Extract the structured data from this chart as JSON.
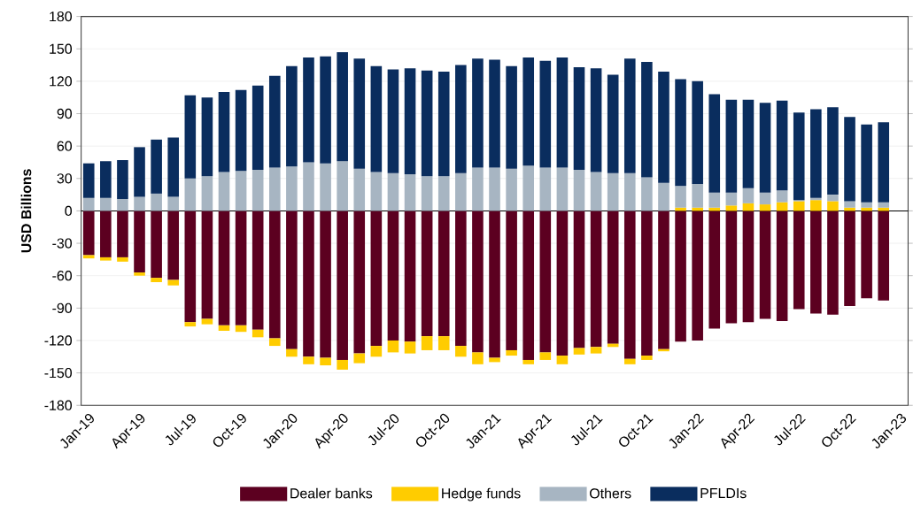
{
  "chart_data": {
    "type": "bar",
    "stacked": true,
    "ylabel": "USD Billions",
    "categories": [
      "Jan-19",
      null,
      null,
      "Apr-19",
      null,
      null,
      "Jul-19",
      null,
      null,
      "Oct-19",
      null,
      null,
      "Jan-20",
      null,
      null,
      "Apr-20",
      null,
      null,
      "Jul-20",
      null,
      null,
      "Oct-20",
      null,
      null,
      "Jan-21",
      null,
      null,
      "Apr-21",
      null,
      null,
      "Jul-21",
      null,
      null,
      "Oct-21",
      null,
      null,
      "Jan-22",
      null,
      null,
      "Apr-22",
      null,
      null,
      "Jul-22",
      null,
      null,
      "Oct-22",
      null,
      null,
      "Jan-23"
    ],
    "series": [
      {
        "name": "Dealer banks",
        "color": "#5c0020",
        "values": [
          -41,
          -43,
          -43,
          -57,
          -62,
          -64,
          -103,
          -100,
          -106,
          -106,
          -110,
          -118,
          -128,
          -135,
          -136,
          -138,
          -132,
          -125,
          -120,
          -121,
          -116,
          -116,
          -125,
          -131,
          -136,
          -129,
          -138,
          -131,
          -134,
          -127,
          -126,
          -123,
          -137,
          -134,
          -128,
          -121,
          -120,
          -109,
          -104,
          -103,
          -100,
          -102,
          -91,
          -95,
          -96,
          -88,
          -81,
          -83,
          null
        ]
      },
      {
        "name": "Hedge funds",
        "color": "#ffcc00",
        "values": [
          -3,
          -3,
          -4,
          -3,
          -4,
          -5,
          -4,
          -5,
          -5,
          -6,
          -7,
          -7,
          -7,
          -7,
          -7,
          -9,
          -9,
          -10,
          -11,
          -11,
          -13,
          -13,
          -10,
          -11,
          -4,
          -5,
          -4,
          -7,
          -8,
          -6,
          -6,
          -3,
          -5,
          -4,
          -2,
          3,
          3,
          3,
          5,
          7,
          6,
          8,
          9,
          10,
          9,
          3,
          3,
          3,
          null
        ]
      },
      {
        "name": "Others",
        "color": "#a7b5c2",
        "values": [
          12,
          12,
          11,
          13,
          16,
          13,
          30,
          32,
          36,
          37,
          38,
          40,
          41,
          45,
          44,
          46,
          39,
          36,
          35,
          34,
          32,
          32,
          35,
          40,
          40,
          39,
          42,
          40,
          40,
          38,
          36,
          35,
          35,
          31,
          26,
          20,
          22,
          14,
          12,
          14,
          11,
          11,
          1,
          2,
          6,
          6,
          5,
          5,
          null
        ]
      },
      {
        "name": "PFLDIs",
        "color": "#0a2d5e",
        "values": [
          32,
          34,
          36,
          46,
          50,
          55,
          77,
          73,
          74,
          75,
          78,
          85,
          93,
          97,
          99,
          101,
          102,
          98,
          96,
          98,
          98,
          97,
          100,
          101,
          100,
          95,
          100,
          99,
          102,
          95,
          96,
          91,
          106,
          107,
          103,
          99,
          95,
          91,
          86,
          82,
          83,
          83,
          81,
          82,
          81,
          78,
          72,
          74,
          null
        ]
      }
    ],
    "ylim": [
      -180,
      180
    ],
    "yticks": [
      -180,
      -150,
      -120,
      -90,
      -60,
      -30,
      0,
      30,
      60,
      90,
      120,
      150,
      180
    ],
    "grid": "y",
    "legend": "bottom"
  }
}
